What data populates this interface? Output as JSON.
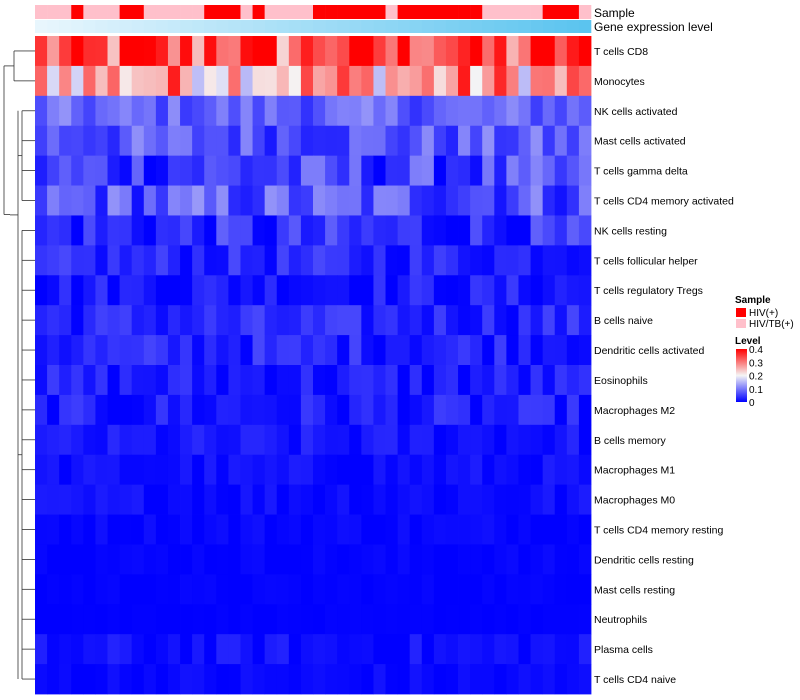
{
  "chart_data": {
    "type": "heatmap",
    "title": "",
    "annotations": [
      {
        "name": "Sample"
      },
      {
        "name": "Gene expression level"
      }
    ],
    "rows": [
      "T cells CD8",
      "Monocytes",
      "NK cells activated",
      "Mast cells activated",
      "T cells gamma delta",
      "T cells CD4 memory activated",
      "NK cells resting",
      "T cells follicular helper",
      "T cells regulatory  Tregs",
      "B cells naive",
      "Dendritic cells activated",
      "Eosinophils",
      "Macrophages M2",
      "B cells memory",
      "Macrophages M1",
      "Macrophages M0",
      "T cells CD4 memory resting",
      "Dendritic cells resting",
      "Mast cells resting",
      "Neutrophils",
      "Plasma cells",
      "T cells CD4 naive"
    ],
    "sample_groups": [
      "HIV/TB(+)",
      "HIV/TB(+)",
      "HIV/TB(+)",
      "HIV(+)",
      "HIV/TB(+)",
      "HIV/TB(+)",
      "HIV/TB(+)",
      "HIV(+)",
      "HIV(+)",
      "HIV/TB(+)",
      "HIV/TB(+)",
      "HIV/TB(+)",
      "HIV/TB(+)",
      "HIV/TB(+)",
      "HIV(+)",
      "HIV(+)",
      "HIV(+)",
      "HIV/TB(+)",
      "HIV(+)",
      "HIV/TB(+)",
      "HIV/TB(+)",
      "HIV/TB(+)",
      "HIV/TB(+)",
      "HIV(+)",
      "HIV(+)",
      "HIV(+)",
      "HIV(+)",
      "HIV(+)",
      "HIV(+)",
      "HIV/TB(+)",
      "HIV(+)",
      "HIV(+)",
      "HIV(+)",
      "HIV(+)",
      "HIV(+)",
      "HIV(+)",
      "HIV(+)",
      "HIV/TB(+)",
      "HIV/TB(+)",
      "HIV/TB(+)",
      "HIV/TB(+)",
      "HIV/TB(+)",
      "HIV(+)",
      "HIV(+)",
      "HIV(+)",
      "HIV/TB(+)"
    ],
    "row_means": [
      0.32,
      0.27,
      0.08,
      0.07,
      0.05,
      0.07,
      0.03,
      0.03,
      0.02,
      0.03,
      0.03,
      0.02,
      0.02,
      0.015,
      0.01,
      0.01,
      0.005,
      0.003,
      0.002,
      0.001,
      0.01,
      0.005
    ],
    "row_spread": [
      0.12,
      0.12,
      0.04,
      0.05,
      0.06,
      0.06,
      0.05,
      0.03,
      0.03,
      0.03,
      0.03,
      0.03,
      0.03,
      0.02,
      0.015,
      0.015,
      0.01,
      0.006,
      0.004,
      0.002,
      0.02,
      0.012
    ],
    "legend": {
      "sample_title": "Sample",
      "groups": [
        {
          "label": "HIV(+)",
          "color": "#ff0000"
        },
        {
          "label": "HIV/TB(+)",
          "color": "#ffc0cb"
        }
      ],
      "level_title": "Level",
      "level_ticks": [
        0,
        0.1,
        0.2,
        0.3,
        0.4
      ],
      "level_range": [
        0,
        0.4
      ]
    },
    "colors": {
      "low": "#0000ff",
      "mid": "#f5f5f5",
      "high": "#ff0000",
      "expr_start": "#e8f6fd",
      "expr_end": "#5bc4ef"
    },
    "cluster_tree_levels": [
      8,
      7,
      7,
      5,
      5,
      4,
      3,
      3,
      2,
      2,
      2,
      2,
      2,
      2,
      1,
      1,
      1,
      1,
      1,
      1,
      1,
      1
    ]
  }
}
